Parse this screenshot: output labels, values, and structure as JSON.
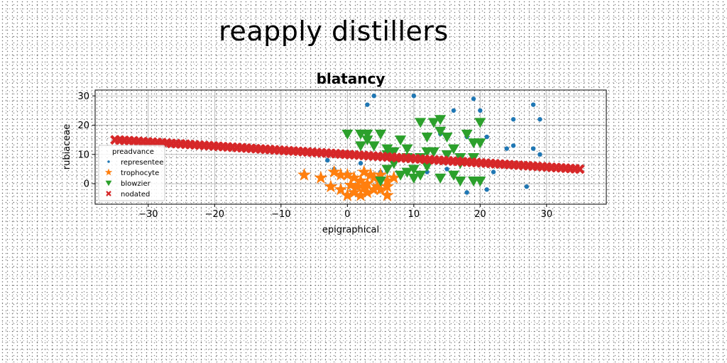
{
  "figure_title": "reapply distillers",
  "chart_data": {
    "type": "scatter",
    "title": "blatancy",
    "xlabel": "epigraphical",
    "ylabel": "rubiaceae",
    "xlim": [
      -38,
      39
    ],
    "ylim": [
      -7,
      32
    ],
    "xticks": [
      -30,
      -20,
      -10,
      0,
      10,
      20,
      30
    ],
    "yticks": [
      0,
      10,
      20,
      30
    ],
    "grid": true,
    "legend": {
      "title": "preadvance",
      "placement": "center-left"
    },
    "series": [
      {
        "name": "representee",
        "marker": "circle",
        "color": "#1f77b4",
        "points": [
          [
            4,
            30
          ],
          [
            3,
            27
          ],
          [
            10,
            30
          ],
          [
            19,
            29
          ],
          [
            28,
            27
          ],
          [
            20,
            25
          ],
          [
            16,
            25
          ],
          [
            29,
            22
          ],
          [
            25,
            22
          ],
          [
            13,
            21
          ],
          [
            14,
            17
          ],
          [
            18,
            16
          ],
          [
            21,
            16
          ],
          [
            25,
            13
          ],
          [
            24,
            12
          ],
          [
            28,
            12
          ],
          [
            29,
            10
          ],
          [
            22,
            4
          ],
          [
            12,
            4
          ],
          [
            15,
            5
          ],
          [
            21,
            -2
          ],
          [
            18,
            -3
          ],
          [
            27,
            -1
          ],
          [
            6,
            -1
          ],
          [
            -3,
            8
          ],
          [
            -2,
            5
          ],
          [
            2,
            7
          ],
          [
            5,
            4
          ],
          [
            8,
            9
          ],
          [
            11,
            9
          ],
          [
            12,
            7
          ],
          [
            17,
            9
          ]
        ]
      },
      {
        "name": "trophocyte",
        "marker": "star",
        "color": "#ff7f0e",
        "points": [
          [
            -6.5,
            3
          ],
          [
            -4,
            2
          ],
          [
            -2,
            4
          ],
          [
            -1,
            3
          ],
          [
            0,
            3
          ],
          [
            1,
            2
          ],
          [
            1.5,
            -1
          ],
          [
            2,
            1
          ],
          [
            2.5,
            4
          ],
          [
            3,
            0
          ],
          [
            3.5,
            3
          ],
          [
            4,
            2
          ],
          [
            5,
            3
          ],
          [
            6,
            -1
          ],
          [
            6,
            1
          ],
          [
            7,
            2
          ],
          [
            -1,
            -2
          ],
          [
            0,
            -4
          ],
          [
            1,
            -3
          ],
          [
            2,
            -4
          ],
          [
            3,
            -3
          ],
          [
            4,
            -2
          ],
          [
            5,
            -2
          ],
          [
            6,
            -4
          ],
          [
            -2.5,
            -1
          ],
          [
            0.5,
            -0.5
          ],
          [
            2.5,
            -1.5
          ],
          [
            4.5,
            -1
          ]
        ]
      },
      {
        "name": "blowzier",
        "marker": "triangle-down",
        "color": "#2ca02c",
        "points": [
          [
            0,
            17
          ],
          [
            2,
            17
          ],
          [
            3,
            17
          ],
          [
            5,
            17
          ],
          [
            3,
            15
          ],
          [
            2,
            13
          ],
          [
            4,
            13
          ],
          [
            6,
            12
          ],
          [
            6,
            10
          ],
          [
            7,
            11
          ],
          [
            8,
            15
          ],
          [
            9,
            12
          ],
          [
            9,
            9
          ],
          [
            11,
            9
          ],
          [
            9,
            4
          ],
          [
            10,
            5
          ],
          [
            11,
            3
          ],
          [
            12,
            6
          ],
          [
            13,
            21
          ],
          [
            14,
            22
          ],
          [
            14,
            18
          ],
          [
            15,
            16
          ],
          [
            15,
            10
          ],
          [
            13,
            11
          ],
          [
            11,
            21
          ],
          [
            12,
            16
          ],
          [
            12,
            11
          ],
          [
            16,
            12
          ],
          [
            17,
            9
          ],
          [
            17,
            7
          ],
          [
            18,
            17
          ],
          [
            19,
            14
          ],
          [
            19,
            9
          ],
          [
            20,
            21
          ],
          [
            20,
            14
          ],
          [
            16,
            3
          ],
          [
            17,
            1
          ],
          [
            19,
            1
          ],
          [
            20,
            1
          ],
          [
            14,
            2
          ],
          [
            10,
            2
          ],
          [
            8,
            3
          ],
          [
            6,
            5
          ],
          [
            5,
            1
          ],
          [
            7,
            7
          ]
        ]
      },
      {
        "name": "nodated",
        "marker": "x-filled",
        "color": "#d62728",
        "line": {
          "x_start": -35,
          "x_end": 35,
          "y_start": 15,
          "y_end": 5,
          "count": 100
        }
      }
    ]
  }
}
